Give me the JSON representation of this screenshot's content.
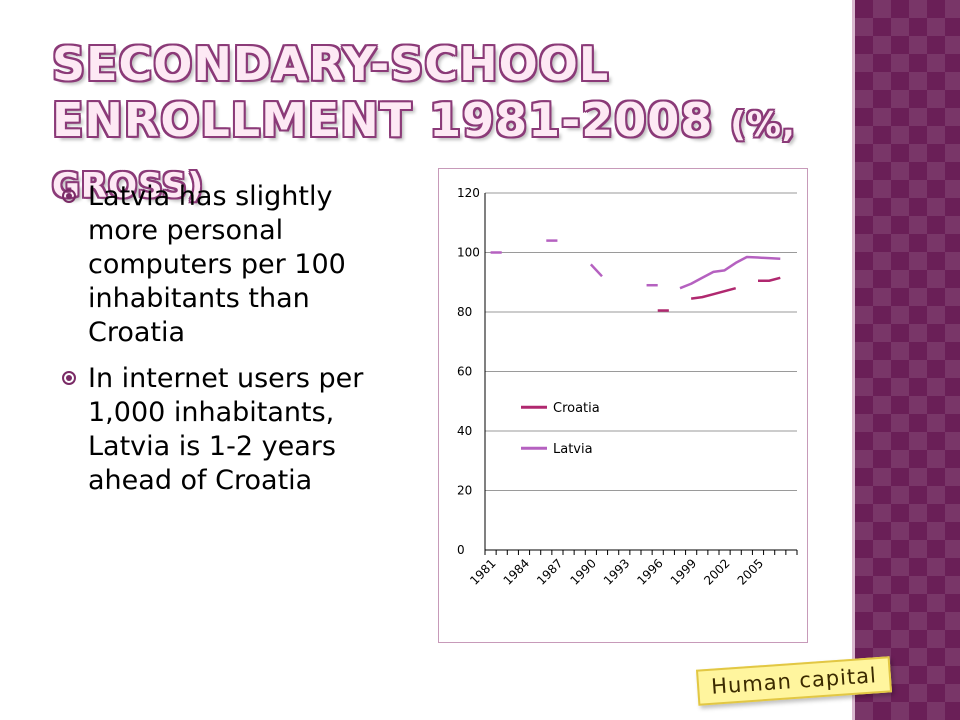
{
  "slide": {
    "title_line1": "SECONDARY-SCHOOL",
    "title_line2": "ENROLLMENT 1981-2008 ",
    "title_suffix": "(%, GROSS)",
    "bullets": [
      "Latvia has slightly more personal computers per 100 inhabitants than Croatia",
      "In internet users per 1,000 inhabitants, Latvia is 1-2 years ahead of Croatia"
    ],
    "tag": "Human capital",
    "colors": {
      "accent": "#7a2b66",
      "title_outline": "#8b3a78",
      "croatia": "#b0286f",
      "latvia": "#b561c0",
      "band": "#6a1f57",
      "tag_bg": "#fff59e"
    }
  },
  "chart_data": {
    "type": "line",
    "title": "",
    "xlabel": "",
    "ylabel": "",
    "ylim": [
      0,
      120
    ],
    "yticks": [
      0,
      20,
      40,
      60,
      80,
      100,
      120
    ],
    "x": [
      1981,
      1982,
      1983,
      1984,
      1985,
      1986,
      1987,
      1988,
      1989,
      1990,
      1991,
      1992,
      1993,
      1994,
      1995,
      1996,
      1997,
      1998,
      1999,
      2000,
      2001,
      2002,
      2003,
      2004,
      2005,
      2006,
      2007,
      2008
    ],
    "xtick_labels": [
      "1981",
      "1984",
      "1987",
      "1990",
      "1993",
      "1996",
      "1999",
      "2002",
      "2005"
    ],
    "legend_position": "left-middle",
    "grid": "horizontal",
    "series": [
      {
        "name": "Croatia",
        "color": "#b0286f",
        "values": [
          null,
          null,
          null,
          null,
          null,
          null,
          null,
          null,
          null,
          null,
          null,
          null,
          null,
          null,
          null,
          80.5,
          80.5,
          null,
          84.5,
          85,
          86,
          87,
          88,
          null,
          90.5,
          90.5,
          91.5,
          null
        ]
      },
      {
        "name": "Latvia",
        "color": "#b561c0",
        "values": [
          100,
          100,
          null,
          null,
          null,
          104,
          104,
          null,
          null,
          96,
          92,
          null,
          null,
          null,
          89,
          89,
          null,
          88,
          89.5,
          91.5,
          93.5,
          94,
          96.5,
          98.5,
          98.3,
          98.1,
          97.9,
          null
        ]
      }
    ]
  }
}
